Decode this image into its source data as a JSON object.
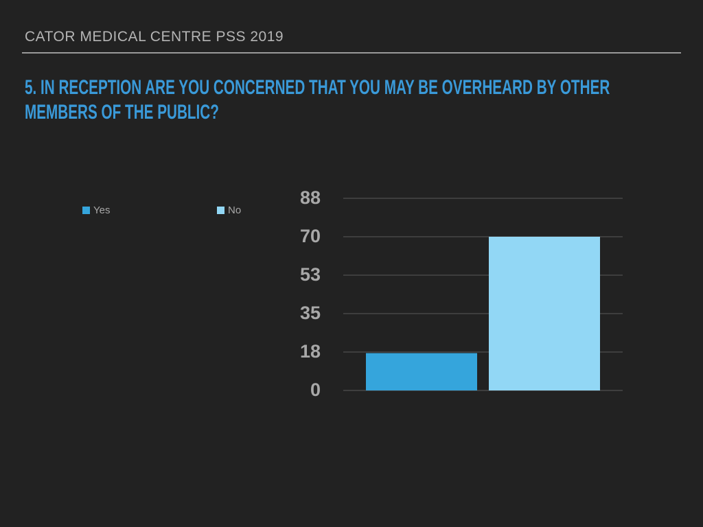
{
  "header": "CATOR MEDICAL CENTRE PSS 2019",
  "chart_data": {
    "type": "bar",
    "title": "5. IN RECEPTION ARE YOU CONCERNED THAT YOU MAY BE OVERHEARD BY OTHER MEMBERS OF THE PUBLIC?",
    "categories": [
      null
    ],
    "series": [
      {
        "name": "Yes",
        "color": "#35a5dc",
        "values": [
          17
        ]
      },
      {
        "name": "No",
        "color": "#92d7f5",
        "values": [
          70
        ]
      }
    ],
    "ylim": [
      0,
      87.5
    ],
    "yticks": [
      0,
      {
        "value": 17.5,
        "label": "18"
      },
      35,
      {
        "value": 52.5,
        "label": "53"
      },
      70,
      {
        "value": 87.5,
        "label": "88"
      }
    ],
    "grid": true,
    "legend": "top-left"
  }
}
